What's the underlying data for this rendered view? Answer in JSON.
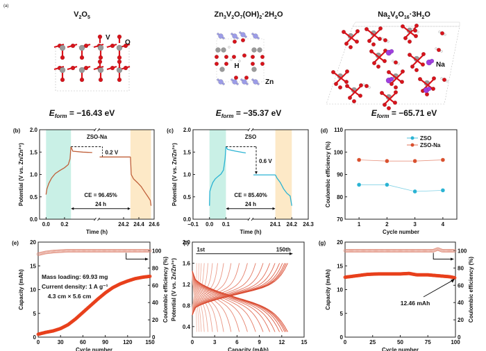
{
  "figure": {
    "panel_a": {
      "label": "(a)",
      "structures": [
        {
          "name_parts": [
            [
              "V",
              "n"
            ],
            [
              "2",
              "sub"
            ],
            [
              "O",
              "n"
            ],
            [
              "5",
              "sub"
            ]
          ],
          "atom_labels": [
            "V",
            "O"
          ],
          "eform_value": "= −16.43 eV"
        },
        {
          "name_parts": [
            [
              "Zn",
              "n"
            ],
            [
              "3",
              "sub"
            ],
            [
              "V",
              "n"
            ],
            [
              "2",
              "sub"
            ],
            [
              "O",
              "n"
            ],
            [
              "7",
              "sub"
            ],
            [
              "(OH)",
              "n"
            ],
            [
              "2",
              "sub"
            ],
            [
              "·2H",
              "n"
            ],
            [
              "2",
              "sub"
            ],
            [
              "O",
              "n"
            ]
          ],
          "atom_labels": [
            "H",
            "Zn"
          ],
          "eform_value": "= −35.37 eV"
        },
        {
          "name_parts": [
            [
              "Na",
              "n"
            ],
            [
              "2",
              "sub"
            ],
            [
              "V",
              "n"
            ],
            [
              "6",
              "sub"
            ],
            [
              "O",
              "n"
            ],
            [
              "16",
              "sub"
            ],
            [
              "·3H",
              "n"
            ],
            [
              "2",
              "sub"
            ],
            [
              "O",
              "n"
            ]
          ],
          "atom_labels": [
            "Na"
          ],
          "eform_value": "= −65.71 eV"
        }
      ],
      "eform_symbol": "E",
      "eform_sub": "form",
      "colors": {
        "O": "#d8131b",
        "V": "#9a9a9a",
        "Zn": "#9c9ce8",
        "Na": "#a040e0",
        "H": "#eeeeee"
      }
    }
  },
  "chart_data": [
    {
      "id": "b",
      "panel_label": "(b)",
      "type": "line",
      "title": "ZSO-Na",
      "xlabel": "Time (h)",
      "ylabel": "Potential (V vs. Zn/Zn²⁺)",
      "ylim": [
        0,
        2.0
      ],
      "yticks": [
        0.0,
        0.5,
        1.0,
        1.5,
        2.0
      ],
      "xticks_left": [
        "0.0",
        "0.2"
      ],
      "xticks_right": [
        "24.2",
        "24.4",
        "24.6"
      ],
      "axis_break": true,
      "charge_region": "0.0–0.27 h",
      "discharge_region": "24.29–24.56 h",
      "rest_label": "24 h",
      "ce_label": "CE = 96.45%",
      "drop_label": "0.2 V",
      "series": [
        {
          "name": "ZSO-Na",
          "color": "#c0603a",
          "charge": [
            [
              0.0,
              0.55
            ],
            [
              0.01,
              0.68
            ],
            [
              0.03,
              0.8
            ],
            [
              0.06,
              0.92
            ],
            [
              0.1,
              1.02
            ],
            [
              0.15,
              1.09
            ],
            [
              0.2,
              1.15
            ],
            [
              0.24,
              1.22
            ],
            [
              0.26,
              1.35
            ],
            [
              0.27,
              1.62
            ]
          ],
          "rest_start": [
            [
              0.27,
              1.62
            ],
            [
              0.29,
              1.52
            ],
            [
              0.4,
              1.5
            ],
            [
              0.5,
              1.49
            ]
          ],
          "rest_end": [
            [
              24.0,
              1.39
            ],
            [
              24.29,
              1.39
            ]
          ],
          "discharge": [
            [
              24.29,
              1.39
            ],
            [
              24.3,
              1.0
            ],
            [
              24.33,
              0.9
            ],
            [
              24.38,
              0.82
            ],
            [
              24.43,
              0.73
            ],
            [
              24.48,
              0.6
            ],
            [
              24.52,
              0.5
            ],
            [
              24.55,
              0.42
            ],
            [
              24.56,
              0.3
            ]
          ]
        }
      ]
    },
    {
      "id": "c",
      "panel_label": "(c)",
      "type": "line",
      "title": "ZSO",
      "xlabel": "Time (h)",
      "ylabel": "Potential (V vs. Zn/Zn²⁺)",
      "ylim": [
        0,
        2.0
      ],
      "yticks": [
        0.0,
        0.5,
        1.0,
        1.5,
        2.0
      ],
      "xticks_left": [
        "−0.1",
        "0.0",
        "0.1"
      ],
      "xticks_right": [
        "24.1",
        "24.2",
        "24.3"
      ],
      "axis_break": true,
      "charge_region": "0.0–0.1 h",
      "discharge_region": "24.1–24.2 h",
      "rest_label": "24 h",
      "ce_label": "CE = 85.40%",
      "drop_label": "0.6 V",
      "series": [
        {
          "name": "ZSO",
          "color": "#2ab3d3",
          "charge": [
            [
              0.0,
              0.3
            ],
            [
              0.002,
              0.62
            ],
            [
              0.01,
              0.72
            ],
            [
              0.02,
              0.82
            ],
            [
              0.035,
              0.9
            ],
            [
              0.05,
              0.95
            ],
            [
              0.07,
              1.01
            ],
            [
              0.085,
              1.1
            ],
            [
              0.095,
              1.35
            ],
            [
              0.1,
              1.62
            ]
          ],
          "rest_start": [
            [
              0.1,
              1.62
            ],
            [
              0.11,
              1.56
            ],
            [
              0.16,
              1.52
            ],
            [
              0.22,
              1.48
            ]
          ],
          "rest_end": [
            [
              24.0,
              0.99
            ],
            [
              24.1,
              0.99
            ]
          ],
          "discharge": [
            [
              24.1,
              0.99
            ],
            [
              24.11,
              0.92
            ],
            [
              24.13,
              0.82
            ],
            [
              24.15,
              0.68
            ],
            [
              24.17,
              0.58
            ],
            [
              24.19,
              0.52
            ],
            [
              24.2,
              0.3
            ]
          ]
        }
      ]
    },
    {
      "id": "d",
      "panel_label": "(d)",
      "type": "line",
      "xlabel": "Cycle number",
      "ylabel": "Coulombic efficiency (%)",
      "ylim": [
        70,
        110
      ],
      "yticks": [
        70,
        80,
        90,
        100,
        110
      ],
      "x": [
        1,
        2,
        3,
        4
      ],
      "xlim": [
        0.5,
        4.5
      ],
      "legend_position": "top-right",
      "series": [
        {
          "name": "ZSO",
          "color": "#2ab3d3",
          "values": [
            85.4,
            85.4,
            82.4,
            82.9
          ]
        },
        {
          "name": "ZSO-Na",
          "color": "#d9502e",
          "values": [
            96.5,
            96.0,
            96.0,
            96.5
          ]
        }
      ]
    },
    {
      "id": "e",
      "panel_label": "(e)",
      "type": "scatter",
      "xlabel": "Cycle number",
      "ylabel": "Capacity (mAh)",
      "y2label": "Coulombic efficiency (%)",
      "xlim": [
        0,
        150
      ],
      "xticks": [
        0,
        30,
        60,
        90,
        120,
        150
      ],
      "ylim": [
        0,
        20
      ],
      "yticks": [
        0,
        5,
        10,
        15,
        20
      ],
      "y2lim": [
        0,
        110
      ],
      "y2ticks": [
        0,
        20,
        40,
        60,
        80,
        100
      ],
      "annotations": [
        "Mass loading: 69.93 mg",
        "Current density: 1 A g⁻¹",
        "4.3 cm × 5.6 cm"
      ],
      "series": [
        {
          "name": "Capacity",
          "color": "#e8401c",
          "axis": "left",
          "x": [
            0,
            10,
            20,
            30,
            40,
            50,
            60,
            70,
            80,
            90,
            100,
            110,
            120,
            130,
            140,
            150
          ],
          "values": [
            0.6,
            1.0,
            1.3,
            1.8,
            2.6,
            3.8,
            5.2,
            6.6,
            8.0,
            9.3,
            10.4,
            11.2,
            11.8,
            12.3,
            12.6,
            12.8
          ]
        },
        {
          "name": "Coulombic efficiency",
          "color": "#e08a78",
          "axis": "right",
          "x": [
            0,
            5,
            10,
            20,
            40,
            60,
            80,
            100,
            120,
            150
          ],
          "values": [
            96,
            97,
            98,
            99,
            100,
            100,
            100,
            100,
            100,
            100
          ]
        }
      ]
    },
    {
      "id": "f",
      "panel_label": "(f)",
      "type": "line",
      "xlabel": "Capacity (mAh)",
      "ylabel": "Potential (V vs. Zn/Zn²⁺)",
      "xlim": [
        0,
        15
      ],
      "xticks": [
        0,
        3,
        6,
        9,
        12,
        15
      ],
      "ylim": [
        0.2,
        2.0
      ],
      "yticks": [
        0.4,
        0.8,
        1.2,
        1.6,
        2.0
      ],
      "annotation_start": "1st",
      "annotation_end": "150th",
      "curve_capacities_mAh": [
        0.6,
        0.9,
        1.2,
        1.6,
        2.1,
        2.7,
        3.4,
        4.2,
        5.2,
        6.3,
        7.4,
        8.5,
        9.5,
        10.4,
        11.1,
        11.7,
        12.1,
        12.4,
        12.6,
        12.8
      ],
      "color_first": "#f3c2b4",
      "color_last": "#d9452a"
    },
    {
      "id": "g",
      "panel_label": "(g)",
      "type": "scatter",
      "xlabel": "Cycle number",
      "ylabel": "Capacity (mAh)",
      "y2label": "Coulombic efficiency (%)",
      "xlim": [
        0,
        100
      ],
      "xticks": [
        0,
        25,
        50,
        75,
        100
      ],
      "ylim": [
        0,
        20
      ],
      "yticks": [
        0,
        5,
        10,
        15,
        20
      ],
      "y2lim": [
        0,
        110
      ],
      "y2ticks": [
        0,
        20,
        40,
        60,
        80,
        100
      ],
      "annotation": "12.46 mAh",
      "series": [
        {
          "name": "Capacity",
          "color": "#e8401c",
          "axis": "left",
          "x": [
            0,
            10,
            20,
            30,
            40,
            50,
            58,
            65,
            75,
            85,
            95,
            100
          ],
          "values": [
            12.6,
            12.9,
            13.2,
            13.3,
            13.3,
            13.3,
            13.4,
            13.1,
            13.1,
            12.9,
            12.7,
            12.46
          ]
        },
        {
          "name": "Coulombic efficiency",
          "color": "#e08a78",
          "axis": "right",
          "x": [
            0,
            20,
            40,
            60,
            80,
            84,
            88,
            100
          ],
          "values": [
            100,
            100,
            100,
            100,
            100,
            102,
            100,
            100
          ]
        }
      ]
    }
  ]
}
